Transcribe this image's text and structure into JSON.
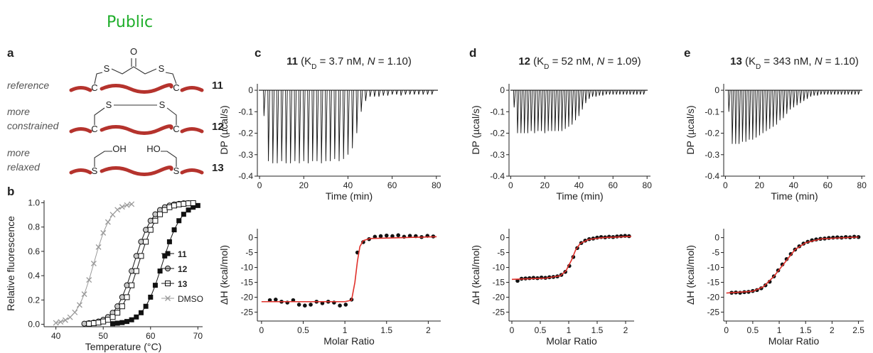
{
  "header": {
    "title": "Public"
  },
  "panel_labels": [
    "a",
    "b",
    "c",
    "d",
    "e"
  ],
  "panel_a": {
    "rows": [
      {
        "label": [
          "reference"
        ],
        "compound": "11",
        "atoms": [
          "C",
          "S",
          "O",
          "S",
          "C"
        ]
      },
      {
        "label": [
          "more",
          "constrained"
        ],
        "compound": "12",
        "atoms": [
          "S",
          "S",
          "C",
          "C"
        ]
      },
      {
        "label": [
          "more",
          "relaxed"
        ],
        "compound": "13",
        "atoms": [
          "OH",
          "HO",
          "S",
          "S"
        ]
      }
    ]
  },
  "chart_data": [
    {
      "type": "line",
      "xlabel": "Temperature (°C)",
      "ylabel": "Relative fluorescence",
      "xlim": [
        37.5,
        71
      ],
      "ylim": [
        -0.02,
        1.02
      ],
      "xticks": [
        40,
        50,
        60,
        70
      ],
      "yticks": [
        {
          "value": 0,
          "label": "0.0"
        },
        {
          "value": 0.2,
          "label": "0.2"
        },
        {
          "value": 0.4,
          "label": "0.4"
        },
        {
          "value": 0.6,
          "label": "0.6"
        },
        {
          "value": 0.8,
          "label": "0.8"
        },
        {
          "value": 1,
          "label": "1.0"
        }
      ],
      "legend": "right",
      "grid": false,
      "series": [
        {
          "name": "11",
          "color": "#111111",
          "marker": "square-filled",
          "x": [
            52,
            53,
            54,
            55,
            56,
            57,
            58,
            59,
            60,
            61,
            62,
            63,
            64,
            65,
            66,
            67,
            68,
            69,
            70
          ],
          "values": [
            0.005,
            0.009,
            0.014,
            0.023,
            0.037,
            0.06,
            0.095,
            0.148,
            0.223,
            0.321,
            0.438,
            0.562,
            0.679,
            0.777,
            0.852,
            0.905,
            0.94,
            0.963,
            0.977
          ]
        },
        {
          "name": "12",
          "color": "#111111",
          "marker": "circle",
          "x": [
            46,
            47,
            48,
            49,
            50,
            51,
            52,
            53,
            54,
            55,
            56,
            57,
            58,
            59,
            60,
            61,
            62,
            63,
            64,
            65,
            66,
            67,
            68
          ],
          "values": [
            0.005,
            0.009,
            0.014,
            0.023,
            0.037,
            0.06,
            0.095,
            0.148,
            0.223,
            0.321,
            0.438,
            0.562,
            0.679,
            0.777,
            0.852,
            0.905,
            0.94,
            0.963,
            0.977,
            0.986,
            0.991,
            0.995,
            0.997
          ]
        },
        {
          "name": "13",
          "color": "#111111",
          "marker": "square-open",
          "x": [
            47,
            48,
            49,
            50,
            51,
            52,
            53,
            54,
            55,
            56,
            57,
            58,
            59,
            60,
            61,
            62,
            63,
            64,
            65,
            66,
            67,
            68,
            69
          ],
          "values": [
            0.005,
            0.009,
            0.014,
            0.023,
            0.037,
            0.06,
            0.095,
            0.148,
            0.223,
            0.321,
            0.438,
            0.562,
            0.679,
            0.777,
            0.852,
            0.905,
            0.94,
            0.963,
            0.977,
            0.986,
            0.991,
            0.995,
            0.997
          ]
        },
        {
          "name": "DMSO",
          "color": "#9a9a9a",
          "marker": "cross",
          "x": [
            40,
            41,
            42,
            43,
            44,
            45,
            46,
            47,
            48,
            49,
            50,
            51,
            52,
            53,
            54,
            55,
            56
          ],
          "values": [
            0.012,
            0.02,
            0.034,
            0.058,
            0.098,
            0.159,
            0.248,
            0.365,
            0.5,
            0.635,
            0.752,
            0.841,
            0.902,
            0.942,
            0.966,
            0.98,
            0.988
          ]
        }
      ]
    },
    {
      "type": "spike",
      "title_parts": [
        "11",
        " (K",
        "D",
        " = 3.7 nM, ",
        "N",
        " = 1.10)"
      ],
      "xlabel": "Time (min)",
      "ylabel": "DP (µcal/s)",
      "xlim": [
        -1,
        82
      ],
      "ylim": [
        -0.4,
        0.03
      ],
      "xticks": [
        0,
        20,
        40,
        60,
        80
      ],
      "yticks": [
        0,
        -0.1,
        -0.2,
        -0.3,
        -0.4
      ],
      "color": "#111111",
      "x": [
        2,
        4,
        6,
        8,
        10,
        12,
        14,
        16,
        18,
        20,
        22,
        24,
        26,
        28,
        30,
        32,
        34,
        36,
        38,
        40,
        42,
        44,
        46,
        48,
        50,
        52,
        54,
        56,
        58,
        60,
        62,
        64,
        66,
        68,
        70,
        72,
        74,
        76,
        78
      ],
      "values": [
        -0.12,
        -0.33,
        -0.34,
        -0.34,
        -0.33,
        -0.34,
        -0.34,
        -0.33,
        -0.34,
        -0.33,
        -0.34,
        -0.33,
        -0.33,
        -0.34,
        -0.33,
        -0.33,
        -0.32,
        -0.33,
        -0.32,
        -0.3,
        -0.27,
        -0.2,
        -0.1,
        -0.05,
        -0.03,
        -0.03,
        -0.03,
        -0.025,
        -0.025,
        -0.02,
        -0.02,
        -0.025,
        -0.02,
        -0.02,
        -0.02,
        -0.02,
        -0.02,
        -0.02,
        -0.02
      ]
    },
    {
      "type": "scatter",
      "xlabel": "Molar Ratio",
      "ylabel": "ΔH (kcal/mol)",
      "xlim": [
        -0.05,
        2.15
      ],
      "ylim": [
        -28,
        3
      ],
      "xticks": [
        0,
        0.5,
        1,
        1.5,
        2
      ],
      "yticks": [
        0,
        -5,
        -10,
        -15,
        -20,
        -25
      ],
      "series": [
        {
          "mode": "markers",
          "color": "#111111",
          "x": [
            0.1,
            0.17,
            0.24,
            0.31,
            0.38,
            0.45,
            0.52,
            0.59,
            0.66,
            0.73,
            0.8,
            0.87,
            0.94,
            1.01,
            1.08,
            1.15,
            1.22,
            1.29,
            1.36,
            1.43,
            1.5,
            1.57,
            1.64,
            1.71,
            1.78,
            1.85,
            1.92,
            1.99,
            2.06
          ],
          "values": [
            -21,
            -20.8,
            -21.5,
            -21.8,
            -21,
            -22.5,
            -22.8,
            -22.5,
            -21.5,
            -22,
            -21.5,
            -21.8,
            -22.8,
            -22.5,
            -20.8,
            -5,
            -1.5,
            -0.5,
            0.3,
            0.5,
            0.7,
            0.5,
            0.8,
            0.3,
            0.6,
            0.5,
            0.2,
            0.6,
            0.4
          ]
        },
        {
          "mode": "line",
          "color": "#e0302a",
          "x": [
            0,
            1,
            1.08,
            1.12,
            1.15,
            1.18,
            1.22,
            1.3,
            2.1
          ],
          "values": [
            -21.5,
            -21.5,
            -21,
            -15,
            -8,
            -3,
            -1,
            -0.3,
            0.3
          ]
        }
      ]
    },
    {
      "type": "spike",
      "title_parts": [
        "12",
        " (K",
        "D",
        " = 52 nM, ",
        "N",
        " = 1.09)"
      ],
      "xlabel": "Time (min)",
      "ylabel": "DP (µcal/s)",
      "xlim": [
        -1,
        82
      ],
      "ylim": [
        -0.4,
        0.03
      ],
      "xticks": [
        0,
        20,
        40,
        60,
        80
      ],
      "yticks": [
        0,
        -0.1,
        -0.2,
        -0.3,
        -0.4
      ],
      "color": "#111111",
      "x": [
        2,
        4,
        6,
        8,
        10,
        12,
        14,
        16,
        18,
        20,
        22,
        24,
        26,
        28,
        30,
        32,
        34,
        36,
        38,
        40,
        42,
        44,
        46,
        48,
        50,
        52,
        54,
        56,
        58,
        60,
        62,
        64,
        66,
        68,
        70,
        72,
        74,
        76,
        78
      ],
      "values": [
        -0.08,
        -0.2,
        -0.2,
        -0.2,
        -0.2,
        -0.19,
        -0.2,
        -0.19,
        -0.19,
        -0.2,
        -0.19,
        -0.19,
        -0.19,
        -0.19,
        -0.19,
        -0.18,
        -0.17,
        -0.16,
        -0.14,
        -0.12,
        -0.09,
        -0.06,
        -0.04,
        -0.03,
        -0.03,
        -0.025,
        -0.025,
        -0.02,
        -0.02,
        -0.02,
        -0.02,
        -0.02,
        -0.02,
        -0.02,
        -0.02,
        -0.02,
        -0.02,
        -0.02,
        -0.02
      ]
    },
    {
      "type": "scatter",
      "xlabel": "Molar Ratio",
      "ylabel": "ΔH (kcal/mol)",
      "xlim": [
        -0.05,
        2.15
      ],
      "ylim": [
        -28,
        3
      ],
      "xticks": [
        0,
        0.5,
        1,
        1.5,
        2
      ],
      "yticks": [
        0,
        -5,
        -10,
        -15,
        -20,
        -25
      ],
      "series": [
        {
          "mode": "markers",
          "color": "#111111",
          "x": [
            0.1,
            0.17,
            0.24,
            0.31,
            0.38,
            0.45,
            0.52,
            0.59,
            0.66,
            0.73,
            0.8,
            0.87,
            0.94,
            1.01,
            1.08,
            1.15,
            1.22,
            1.29,
            1.36,
            1.43,
            1.5,
            1.57,
            1.64,
            1.71,
            1.78,
            1.85,
            1.92,
            1.99,
            2.06
          ],
          "values": [
            -14.5,
            -13.8,
            -13.7,
            -13.6,
            -13.5,
            -13.6,
            -13.4,
            -13.5,
            -13.3,
            -13.2,
            -13,
            -12.5,
            -11.5,
            -9.5,
            -6.5,
            -3.5,
            -1.8,
            -1,
            -0.5,
            -0.3,
            0,
            0.2,
            0.1,
            0.3,
            0.2,
            0.4,
            0.5,
            0.6,
            0.5
          ]
        },
        {
          "mode": "line",
          "color": "#e0302a",
          "x": [
            0,
            0.6,
            0.85,
            0.95,
            1.05,
            1.12,
            1.2,
            1.35,
            1.6,
            2.1
          ],
          "values": [
            -14,
            -13.6,
            -12.8,
            -11.2,
            -7.5,
            -4.2,
            -2,
            -0.6,
            0,
            0.4
          ]
        }
      ]
    },
    {
      "type": "spike",
      "title_parts": [
        "13",
        " (K",
        "D",
        " = 343 nM, ",
        "N",
        " = 1.10)"
      ],
      "xlabel": "Time (min)",
      "ylabel": "DP (µcal/s)",
      "xlim": [
        -1,
        82
      ],
      "ylim": [
        -0.4,
        0.03
      ],
      "xticks": [
        0,
        20,
        40,
        60,
        80
      ],
      "yticks": [
        0,
        -0.1,
        -0.2,
        -0.3,
        -0.4
      ],
      "color": "#111111",
      "x": [
        2,
        4,
        6,
        8,
        10,
        12,
        14,
        16,
        18,
        20,
        22,
        24,
        26,
        28,
        30,
        32,
        34,
        36,
        38,
        40,
        42,
        44,
        46,
        48,
        50,
        52,
        54,
        56,
        58,
        60,
        62,
        64,
        66,
        68,
        70,
        72,
        74,
        76,
        78
      ],
      "values": [
        -0.1,
        -0.25,
        -0.25,
        -0.25,
        -0.24,
        -0.24,
        -0.23,
        -0.23,
        -0.22,
        -0.21,
        -0.2,
        -0.19,
        -0.18,
        -0.17,
        -0.16,
        -0.14,
        -0.13,
        -0.11,
        -0.09,
        -0.08,
        -0.07,
        -0.06,
        -0.05,
        -0.04,
        -0.03,
        -0.025,
        -0.025,
        -0.02,
        -0.02,
        -0.02,
        -0.02,
        -0.02,
        -0.02,
        -0.02,
        -0.02,
        -0.02,
        -0.02,
        -0.02,
        -0.02
      ]
    },
    {
      "type": "scatter",
      "xlabel": "Molar Ratio",
      "ylabel": "ΔH (kcal/mol)",
      "xlim": [
        -0.05,
        2.6
      ],
      "ylim": [
        -28,
        3
      ],
      "xticks": [
        0,
        0.5,
        1,
        1.5,
        2,
        2.5
      ],
      "yticks": [
        0,
        -5,
        -10,
        -15,
        -20,
        -25
      ],
      "series": [
        {
          "mode": "markers",
          "color": "#111111",
          "x": [
            0.1,
            0.18,
            0.26,
            0.34,
            0.42,
            0.5,
            0.58,
            0.66,
            0.74,
            0.82,
            0.9,
            0.98,
            1.06,
            1.14,
            1.22,
            1.3,
            1.38,
            1.46,
            1.54,
            1.62,
            1.7,
            1.78,
            1.86,
            1.94,
            2.02,
            2.1,
            2.18,
            2.26,
            2.34,
            2.42,
            2.5
          ],
          "values": [
            -18.5,
            -18.4,
            -18.5,
            -18.3,
            -18.2,
            -17.9,
            -17.6,
            -17,
            -16,
            -14.8,
            -13,
            -11,
            -9,
            -7.2,
            -5.5,
            -4,
            -2.9,
            -2,
            -1.4,
            -0.9,
            -0.6,
            -0.4,
            -0.3,
            -0.1,
            0,
            0.1,
            0,
            0.2,
            0.1,
            0.3,
            0.2
          ]
        },
        {
          "mode": "line",
          "color": "#e0302a",
          "x": [
            0,
            0.5,
            0.7,
            0.9,
            1.1,
            1.3,
            1.5,
            1.8,
            2.5
          ],
          "values": [
            -18.6,
            -18,
            -16.5,
            -13,
            -8.5,
            -4,
            -1.7,
            -0.4,
            0.2
          ]
        }
      ]
    }
  ]
}
